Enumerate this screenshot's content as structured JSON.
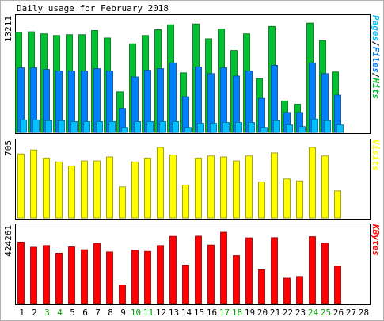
{
  "chart_data": {
    "type": "bar",
    "title": "Daily usage for February 2018",
    "days": [
      "1",
      "2",
      "3",
      "4",
      "5",
      "6",
      "7",
      "8",
      "9",
      "10",
      "11",
      "12",
      "13",
      "14",
      "15",
      "16",
      "17",
      "18",
      "19",
      "20",
      "21",
      "22",
      "23",
      "24",
      "25",
      "26",
      "27",
      "28"
    ],
    "weekend_days": [
      "3",
      "4",
      "10",
      "11",
      "17",
      "18",
      "24",
      "25"
    ],
    "panels": [
      {
        "id": "hits",
        "ylabel": "Pages/Files/Hits",
        "max_label": "13211",
        "ymax": 13211,
        "series": [
          {
            "name": "Hits",
            "color": "#00c030",
            "values": [
              12100,
              12150,
              11900,
              11700,
              11800,
              11800,
              12300,
              11400,
              4900,
              10700,
              11700,
              12400,
              13000,
              7200,
              13100,
              11300,
              12500,
              9900,
              11900,
              6500,
              12800,
              3800,
              3400,
              13200,
              11100,
              7300,
              null,
              null
            ]
          },
          {
            "name": "Files",
            "color": "#0080ff",
            "values": [
              7800,
              7800,
              7600,
              7400,
              7400,
              7400,
              7700,
              7400,
              2900,
              6700,
              7500,
              7700,
              8400,
              4300,
              7900,
              7100,
              7800,
              6800,
              7400,
              4100,
              8100,
              2400,
              2400,
              8400,
              7100,
              4500,
              null,
              null
            ]
          },
          {
            "name": "Pages",
            "color": "#00c0ff",
            "values": [
              1500,
              1500,
              1400,
              1400,
              1300,
              1300,
              1300,
              1300,
              600,
              1300,
              1300,
              1300,
              1300,
              600,
              1100,
              1100,
              1200,
              1200,
              1200,
              600,
              1400,
              900,
              700,
              1600,
              1400,
              900,
              null,
              null
            ]
          }
        ]
      },
      {
        "id": "visits",
        "ylabel": "Visits",
        "max_label": "705",
        "ymax": 705,
        "series": [
          {
            "name": "Visits",
            "color": "#ffff00",
            "values": [
              640,
              680,
              600,
              560,
              520,
              570,
              570,
              610,
              310,
              560,
              600,
              705,
              630,
              330,
              600,
              620,
              610,
              570,
              620,
              360,
              650,
              390,
              370,
              705,
              620,
              270,
              null,
              null
            ]
          }
        ]
      },
      {
        "id": "kbytes",
        "ylabel": "KBytes",
        "max_label": "424261",
        "ymax": 424261,
        "series": [
          {
            "name": "KBytes",
            "color": "#ff0000",
            "values": [
              366000,
              335000,
              345000,
              300000,
              337000,
              320000,
              358000,
              307000,
              110000,
              317000,
              310000,
              345000,
              400000,
              229000,
              401000,
              348000,
              424261,
              285000,
              391000,
              201000,
              392000,
              151000,
              161000,
              398000,
              360000,
              222000,
              null,
              null
            ]
          }
        ]
      }
    ]
  }
}
